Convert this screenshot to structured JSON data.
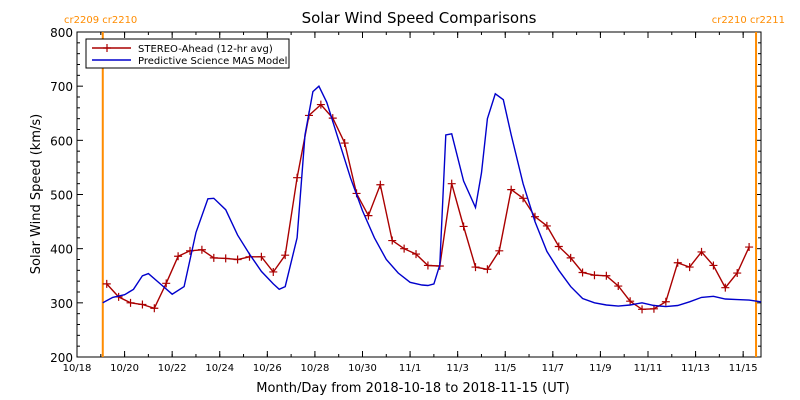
{
  "chart_data": {
    "type": "line",
    "title": "Solar Wind Speed Comparisons",
    "xlabel": "Month/Day from 2018-10-18 to 2018-11-15 (UT)",
    "ylabel": "Solar Wind Speed (km/s)",
    "xlim": [
      "2018-10-18",
      "2018-11-15T18:00"
    ],
    "ylim": [
      200,
      800
    ],
    "y_ticks": [
      200,
      300,
      400,
      500,
      600,
      700,
      800
    ],
    "x_ticks": [
      {
        "date": "2018-10-18",
        "label": "10/18"
      },
      {
        "date": "2018-10-20",
        "label": "10/20"
      },
      {
        "date": "2018-10-22",
        "label": "10/22"
      },
      {
        "date": "2018-10-24",
        "label": "10/24"
      },
      {
        "date": "2018-10-26",
        "label": "10/26"
      },
      {
        "date": "2018-10-28",
        "label": "10/28"
      },
      {
        "date": "2018-10-30",
        "label": "10/30"
      },
      {
        "date": "2018-11-01",
        "label": "11/1"
      },
      {
        "date": "2018-11-03",
        "label": "11/3"
      },
      {
        "date": "2018-11-05",
        "label": "11/5"
      },
      {
        "date": "2018-11-07",
        "label": "11/7"
      },
      {
        "date": "2018-11-09",
        "label": "11/9"
      },
      {
        "date": "2018-11-11",
        "label": "11/11"
      },
      {
        "date": "2018-11-13",
        "label": "11/13"
      },
      {
        "date": "2018-11-15",
        "label": "11/15"
      }
    ],
    "grid": false,
    "legend_position": "top-left",
    "carrington_markers": [
      {
        "date": "2018-10-19T02:00",
        "labels": [
          "cr2209",
          "cr2210"
        ],
        "label_side": "left"
      },
      {
        "date": "2018-11-15T13:00",
        "labels": [
          "cr2210",
          "cr2211"
        ],
        "label_side": "right"
      }
    ],
    "marker_color": "#ff8c00",
    "series": [
      {
        "name": "STEREO-Ahead (12-hr avg)",
        "color": "#aa0000",
        "marker": "plus",
        "points": [
          [
            "2018-10-19T06:00",
            335
          ],
          [
            "2018-10-19T18:00",
            311
          ],
          [
            "2018-10-20T06:00",
            300
          ],
          [
            "2018-10-20T18:00",
            297
          ],
          [
            "2018-10-21T06:00",
            290
          ],
          [
            "2018-10-21T18:00",
            336
          ],
          [
            "2018-10-22T06:00",
            386
          ],
          [
            "2018-10-22T18:00",
            396
          ],
          [
            "2018-10-23T06:00",
            398
          ],
          [
            "2018-10-23T18:00",
            383
          ],
          [
            "2018-10-24T06:00",
            382
          ],
          [
            "2018-10-24T18:00",
            380
          ],
          [
            "2018-10-25T06:00",
            385
          ],
          [
            "2018-10-25T18:00",
            385
          ],
          [
            "2018-10-26T06:00",
            357
          ],
          [
            "2018-10-26T18:00",
            388
          ],
          [
            "2018-10-27T06:00",
            531
          ],
          [
            "2018-10-27T18:00",
            646
          ],
          [
            "2018-10-28T06:00",
            666
          ],
          [
            "2018-10-28T18:00",
            641
          ],
          [
            "2018-10-29T06:00",
            595
          ],
          [
            "2018-10-29T18:00",
            502
          ],
          [
            "2018-10-30T06:00",
            461
          ],
          [
            "2018-10-30T18:00",
            518
          ],
          [
            "2018-10-31T06:00",
            415
          ],
          [
            "2018-10-31T18:00",
            400
          ],
          [
            "2018-11-01T06:00",
            390
          ],
          [
            "2018-11-01T18:00",
            369
          ],
          [
            "2018-11-02T06:00",
            368
          ],
          [
            "2018-11-02T18:00",
            520
          ],
          [
            "2018-11-03T06:00",
            441
          ],
          [
            "2018-11-03T18:00",
            366
          ],
          [
            "2018-11-04T06:00",
            362
          ],
          [
            "2018-11-04T18:00",
            396
          ],
          [
            "2018-11-05T06:00",
            509
          ],
          [
            "2018-11-05T18:00",
            493
          ],
          [
            "2018-11-06T06:00",
            459
          ],
          [
            "2018-11-06T18:00",
            442
          ],
          [
            "2018-11-07T06:00",
            404
          ],
          [
            "2018-11-07T18:00",
            383
          ],
          [
            "2018-11-08T06:00",
            356
          ],
          [
            "2018-11-08T18:00",
            351
          ],
          [
            "2018-11-09T06:00",
            350
          ],
          [
            "2018-11-09T18:00",
            331
          ],
          [
            "2018-11-10T06:00",
            303
          ],
          [
            "2018-11-10T18:00",
            288
          ],
          [
            "2018-11-11T06:00",
            289
          ],
          [
            "2018-11-11T18:00",
            302
          ],
          [
            "2018-11-12T06:00",
            374
          ],
          [
            "2018-11-12T18:00",
            366
          ],
          [
            "2018-11-13T06:00",
            394
          ],
          [
            "2018-11-13T18:00",
            369
          ],
          [
            "2018-11-14T06:00",
            328
          ],
          [
            "2018-11-14T18:00",
            355
          ],
          [
            "2018-11-15T06:00",
            403
          ]
        ]
      },
      {
        "name": "Predictive Science MAS Model",
        "color": "#0000cc",
        "marker": "none",
        "points": [
          [
            "2018-10-19T02:00",
            300
          ],
          [
            "2018-10-19T12:00",
            310
          ],
          [
            "2018-10-20T00:00",
            315
          ],
          [
            "2018-10-20T09:00",
            325
          ],
          [
            "2018-10-20T18:00",
            350
          ],
          [
            "2018-10-21T00:00",
            354
          ],
          [
            "2018-10-21T12:00",
            335
          ],
          [
            "2018-10-22T00:00",
            316
          ],
          [
            "2018-10-22T12:00",
            330
          ],
          [
            "2018-10-23T00:00",
            430
          ],
          [
            "2018-10-23T12:00",
            492
          ],
          [
            "2018-10-23T18:00",
            493
          ],
          [
            "2018-10-24T06:00",
            472
          ],
          [
            "2018-10-24T18:00",
            425
          ],
          [
            "2018-10-25T06:00",
            390
          ],
          [
            "2018-10-25T18:00",
            358
          ],
          [
            "2018-10-26T06:00",
            335
          ],
          [
            "2018-10-26T12:00",
            325
          ],
          [
            "2018-10-26T18:00",
            330
          ],
          [
            "2018-10-27T06:00",
            420
          ],
          [
            "2018-10-27T14:00",
            610
          ],
          [
            "2018-10-27T22:00",
            690
          ],
          [
            "2018-10-28T04:00",
            700
          ],
          [
            "2018-10-28T12:00",
            670
          ],
          [
            "2018-10-29T00:00",
            600
          ],
          [
            "2018-10-29T12:00",
            530
          ],
          [
            "2018-10-30T00:00",
            470
          ],
          [
            "2018-10-30T12:00",
            420
          ],
          [
            "2018-10-31T00:00",
            380
          ],
          [
            "2018-10-31T12:00",
            355
          ],
          [
            "2018-11-01T00:00",
            338
          ],
          [
            "2018-11-01T12:00",
            333
          ],
          [
            "2018-11-01T18:00",
            332
          ],
          [
            "2018-11-02T00:00",
            335
          ],
          [
            "2018-11-02T06:00",
            370
          ],
          [
            "2018-11-02T12:00",
            610
          ],
          [
            "2018-11-02T18:00",
            612
          ],
          [
            "2018-11-03T06:00",
            525
          ],
          [
            "2018-11-03T18:00",
            476
          ],
          [
            "2018-11-04T00:00",
            540
          ],
          [
            "2018-11-04T06:00",
            640
          ],
          [
            "2018-11-04T14:00",
            686
          ],
          [
            "2018-11-04T22:00",
            675
          ],
          [
            "2018-11-05T06:00",
            610
          ],
          [
            "2018-11-05T18:00",
            520
          ],
          [
            "2018-11-06T06:00",
            450
          ],
          [
            "2018-11-06T18:00",
            395
          ],
          [
            "2018-11-07T06:00",
            360
          ],
          [
            "2018-11-07T18:00",
            330
          ],
          [
            "2018-11-08T06:00",
            308
          ],
          [
            "2018-11-08T18:00",
            300
          ],
          [
            "2018-11-09T06:00",
            296
          ],
          [
            "2018-11-09T18:00",
            294
          ],
          [
            "2018-11-10T06:00",
            296
          ],
          [
            "2018-11-10T18:00",
            300
          ],
          [
            "2018-11-11T06:00",
            295
          ],
          [
            "2018-11-11T18:00",
            293
          ],
          [
            "2018-11-12T06:00",
            295
          ],
          [
            "2018-11-12T18:00",
            302
          ],
          [
            "2018-11-13T06:00",
            310
          ],
          [
            "2018-11-13T18:00",
            312
          ],
          [
            "2018-11-14T06:00",
            307
          ],
          [
            "2018-11-14T18:00",
            306
          ],
          [
            "2018-11-15T06:00",
            305
          ],
          [
            "2018-11-15T18:00",
            302
          ]
        ]
      }
    ]
  }
}
